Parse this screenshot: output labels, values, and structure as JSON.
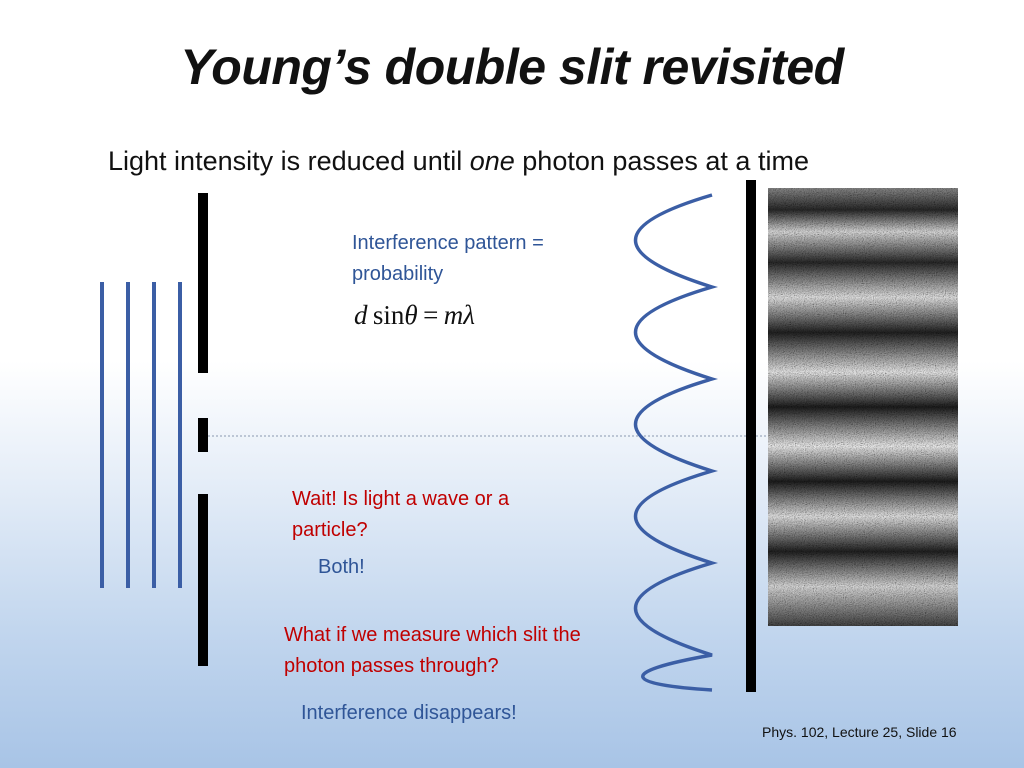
{
  "slide": {
    "title": "Young’s double slit revisited",
    "subtitle_pre": "Light intensity is reduced until ",
    "subtitle_emph": "one",
    "subtitle_post": " photon passes at a time",
    "equation": {
      "d": "d",
      "sin": "sin",
      "theta": "θ",
      "eq": "=",
      "m": "m",
      "lambda": "λ"
    },
    "notes": {
      "interference_probability": "Interference pattern = probability",
      "wait_question": "Wait! Is light a wave or a particle?",
      "both_answer": "Both!",
      "measure_question": "What if we measure which slit the photon passes through?",
      "disappears_answer": "Interference disappears!"
    },
    "footer": "Phys. 102, Lecture 25, Slide 16"
  },
  "colors": {
    "title_text": "#111111",
    "note_blue": "#2f5597",
    "note_red": "#c00000",
    "wave_blue": "#3b5ea5",
    "barrier_black": "#000000",
    "centerline_gray": "#8a98b0"
  },
  "diagram": {
    "incident_wavefront_count": 4,
    "slit_count": 2,
    "intensity_pattern_peaks": 6,
    "detector_image": "noisy-photon-interference-fringes"
  }
}
